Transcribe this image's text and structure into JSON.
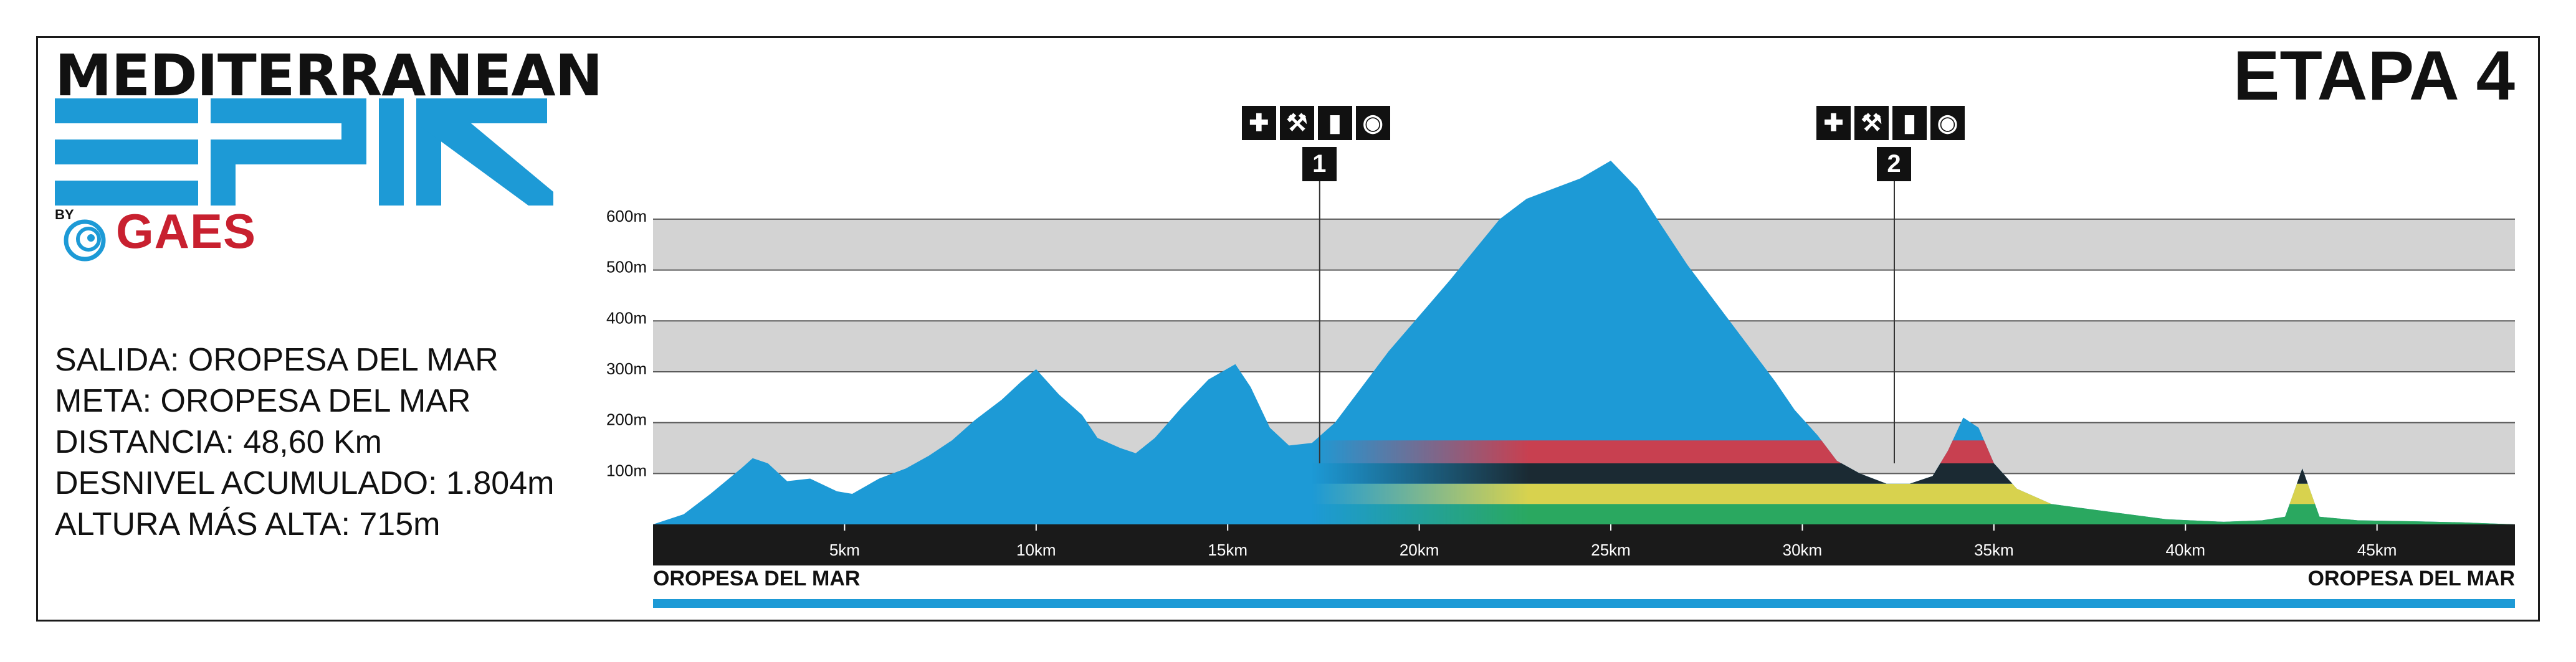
{
  "brand": {
    "line1": "MEDITERRANEAN",
    "line2": "EPIC",
    "by": "BY",
    "sponsor": "GAES",
    "primary_color": "#1d9ad6",
    "sponsor_color": "#c8202f"
  },
  "stage_title": "ETAPA 4",
  "info": {
    "salida": "SALIDA: OROPESA DEL MAR",
    "meta": "META: OROPESA DEL MAR",
    "distancia": "DISTANCIA: 48,60 Km",
    "desnivel": "DESNIVEL ACUMULADO: 1.804m",
    "altura": "ALTURA MÁS ALTA: 715m"
  },
  "places": {
    "start": "OROPESA DEL MAR",
    "end": "OROPESA DEL MAR"
  },
  "checkpoints": [
    {
      "number": "1",
      "km": 17.4,
      "icons": [
        "medical-icon",
        "wrench-icon",
        "bottle-icon",
        "food-icon"
      ]
    },
    {
      "number": "2",
      "km": 32.4,
      "icons": [
        "medical-icon",
        "wrench-icon",
        "bottle-icon",
        "food-icon"
      ]
    }
  ],
  "chart_data": {
    "type": "area",
    "x_unit": "km",
    "y_unit": "m",
    "xlim": [
      0,
      48.6
    ],
    "ylim": [
      0,
      715
    ],
    "x_ticks": [
      "5km",
      "10km",
      "15km",
      "20km",
      "25km",
      "30km",
      "35km",
      "40km",
      "45km"
    ],
    "x_tick_values": [
      5,
      10,
      15,
      20,
      25,
      30,
      35,
      40,
      45
    ],
    "y_ticks": [
      "100m",
      "200m",
      "300m",
      "400m",
      "500m",
      "600m"
    ],
    "y_tick_values": [
      100,
      200,
      300,
      400,
      500,
      600
    ],
    "grid": true,
    "profile": [
      [
        0,
        0
      ],
      [
        0.8,
        20
      ],
      [
        1.5,
        60
      ],
      [
        2.3,
        110
      ],
      [
        2.6,
        130
      ],
      [
        3,
        120
      ],
      [
        3.5,
        85
      ],
      [
        4.1,
        90
      ],
      [
        4.8,
        65
      ],
      [
        5.2,
        60
      ],
      [
        5.9,
        90
      ],
      [
        6.6,
        110
      ],
      [
        7.2,
        135
      ],
      [
        7.8,
        165
      ],
      [
        8.4,
        205
      ],
      [
        9.1,
        245
      ],
      [
        9.6,
        280
      ],
      [
        10,
        305
      ],
      [
        10.6,
        255
      ],
      [
        11.2,
        215
      ],
      [
        11.6,
        170
      ],
      [
        12.2,
        150
      ],
      [
        12.6,
        140
      ],
      [
        13.1,
        170
      ],
      [
        13.8,
        230
      ],
      [
        14.5,
        285
      ],
      [
        15.2,
        315
      ],
      [
        15.6,
        270
      ],
      [
        16.1,
        190
      ],
      [
        16.6,
        155
      ],
      [
        17.2,
        160
      ],
      [
        17.8,
        200
      ],
      [
        18.5,
        270
      ],
      [
        19.2,
        340
      ],
      [
        20,
        410
      ],
      [
        20.8,
        480
      ],
      [
        21.5,
        545
      ],
      [
        22.1,
        600
      ],
      [
        22.8,
        640
      ],
      [
        23.5,
        660
      ],
      [
        24.2,
        680
      ],
      [
        25,
        715
      ],
      [
        25.7,
        660
      ],
      [
        26.3,
        590
      ],
      [
        27,
        510
      ],
      [
        27.8,
        430
      ],
      [
        28.6,
        350
      ],
      [
        29.3,
        280
      ],
      [
        29.8,
        225
      ],
      [
        30.4,
        175
      ],
      [
        30.9,
        125
      ],
      [
        31.5,
        100
      ],
      [
        32.2,
        80
      ],
      [
        32.8,
        80
      ],
      [
        33.4,
        95
      ],
      [
        33.8,
        145
      ],
      [
        34.2,
        210
      ],
      [
        34.6,
        190
      ],
      [
        35,
        120
      ],
      [
        35.6,
        70
      ],
      [
        36.5,
        40
      ],
      [
        38,
        25
      ],
      [
        39.5,
        10
      ],
      [
        41,
        5
      ],
      [
        42,
        8
      ],
      [
        42.6,
        15
      ],
      [
        43.05,
        110
      ],
      [
        43.5,
        15
      ],
      [
        44.5,
        8
      ],
      [
        46,
        6
      ],
      [
        47.2,
        4
      ],
      [
        48.6,
        0
      ]
    ],
    "terrain_bands": [
      {
        "name": "green",
        "color": "#2aa860",
        "y": [
          0,
          40
        ]
      },
      {
        "name": "yellow",
        "color": "#d8d24e",
        "y": [
          40,
          80
        ]
      },
      {
        "name": "dark",
        "color": "#1b2a33",
        "y": [
          80,
          120
        ]
      },
      {
        "name": "red",
        "color": "#c84050",
        "y": [
          120,
          165
        ]
      }
    ],
    "colors": {
      "profile": "#1d9ad6",
      "grid_band": "#d3d3d3",
      "axis_bar": "#1a1a1a"
    }
  }
}
